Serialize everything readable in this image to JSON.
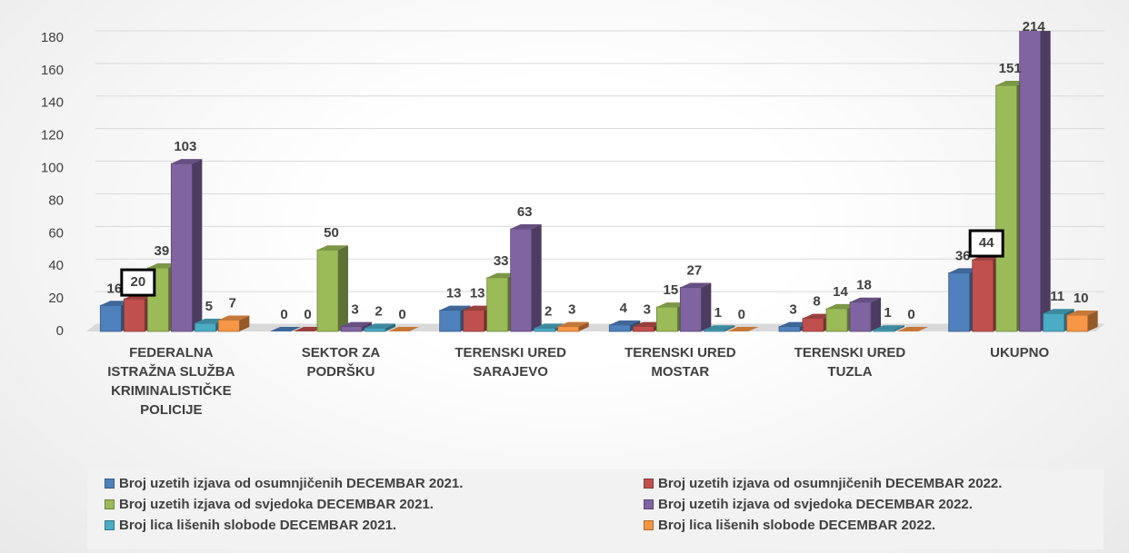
{
  "chart_data": {
    "type": "bar3d",
    "categories": [
      "FEDERALNA ISTRAŽNA SLUŽBA KRIMINALISTIČKE POLICIJE",
      "SEKTOR ZA PODRŠKU",
      "TERENSKI URED SARAJEVO",
      "TERENSKI URED MOSTAR",
      "TERENSKI URED TUZLA",
      "UKUPNO"
    ],
    "series": [
      {
        "name": "Broj uzetih izjava od osumnjičenih DECEMBAR 2021.",
        "color": "#4f81bd",
        "values": [
          16,
          0,
          13,
          4,
          3,
          36
        ]
      },
      {
        "name": "Broj uzetih izjava od osumnjičenih DECEMBAR 2022.",
        "color": "#c0504d",
        "values": [
          20,
          0,
          13,
          3,
          8,
          44
        ]
      },
      {
        "name": "Broj uzetih izjava od svjedoka DECEMBAR 2021.",
        "color": "#9bbb59",
        "values": [
          39,
          50,
          33,
          15,
          14,
          151
        ]
      },
      {
        "name": "Broj uzetih izjava od svjedoka DECEMBAR 2022.",
        "color": "#8064a2",
        "values": [
          103,
          3,
          63,
          27,
          18,
          214
        ]
      },
      {
        "name": "Broj lica lišenih slobode DECEMBAR 2021.",
        "color": "#4bacc6",
        "values": [
          5,
          2,
          2,
          1,
          1,
          11
        ]
      },
      {
        "name": "Broj lica lišenih slobode DECEMBAR 2022.",
        "color": "#f79646",
        "values": [
          7,
          0,
          3,
          0,
          0,
          10
        ]
      }
    ],
    "ylim": [
      0,
      180
    ],
    "yticks": [
      0,
      20,
      40,
      60,
      80,
      100,
      120,
      140,
      160,
      180
    ],
    "grid": true
  }
}
